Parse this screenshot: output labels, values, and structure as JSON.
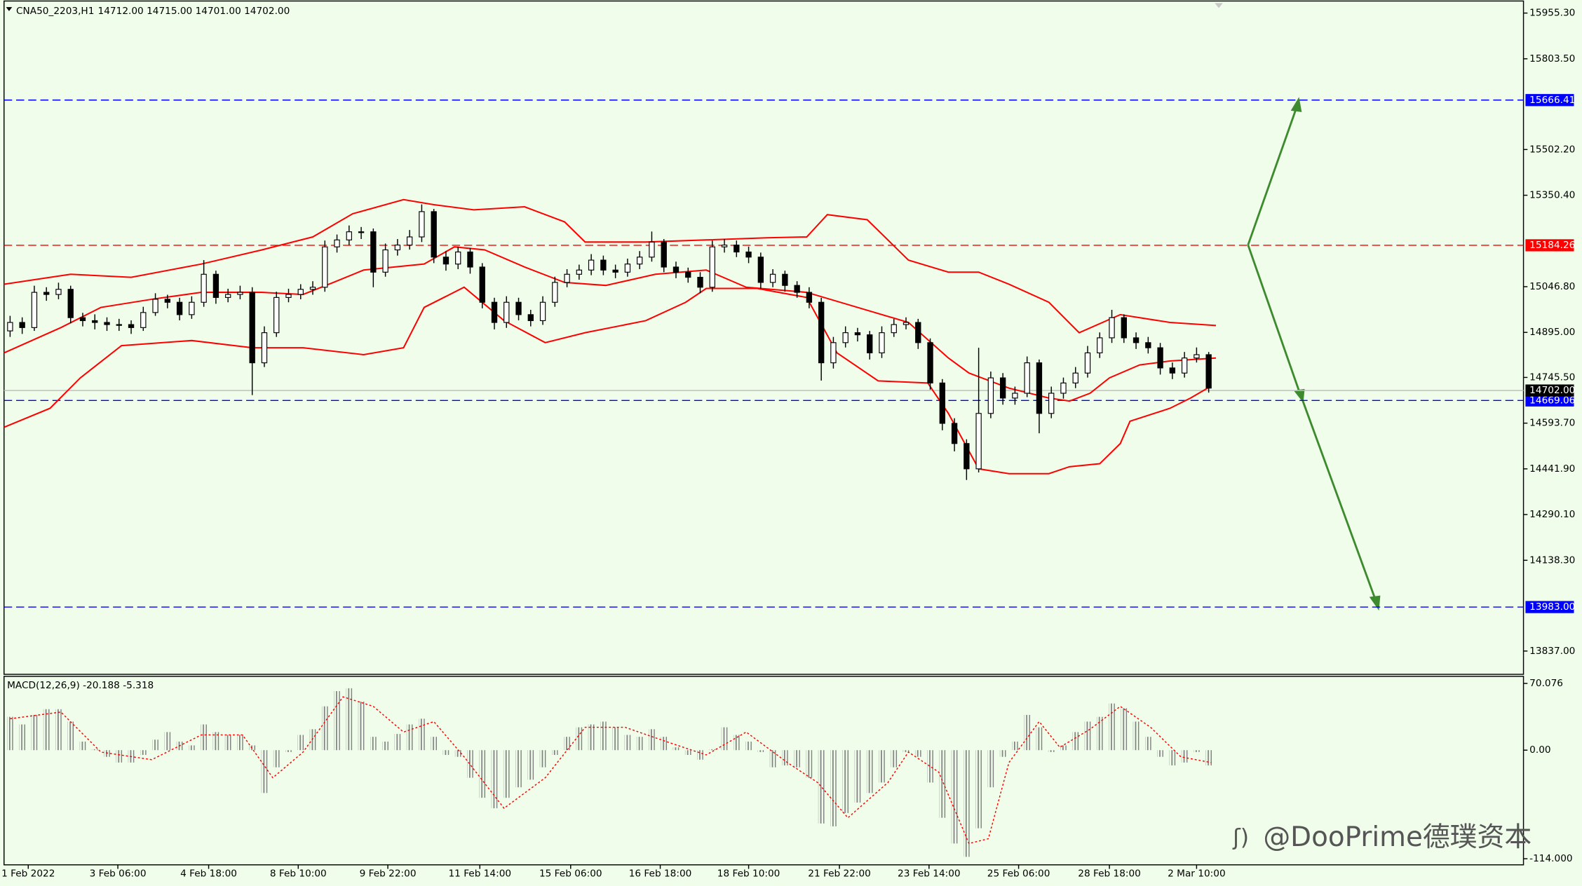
{
  "chart_data": [
    {
      "type": "candlestick",
      "title": "CNA50_2203,H1",
      "quote": "14712.00 14715.00 14701.00 14702.00",
      "ylim": [
        13763,
        15992
      ],
      "xlim": [
        -0.5,
        125
      ],
      "yticks": [
        {
          "value": 15955.3,
          "label": "15955.30"
        },
        {
          "value": 15803.5,
          "label": "15803.50"
        },
        {
          "value": 15502.2,
          "label": "15502.20"
        },
        {
          "value": 15350.4,
          "label": "15350.40"
        },
        {
          "value": 15046.8,
          "label": "15046.80"
        },
        {
          "value": 14895,
          "label": "14895.00"
        },
        {
          "value": 14745.5,
          "label": "14745.50"
        },
        {
          "value": 14593.7,
          "label": "14593.70"
        },
        {
          "value": 14441.9,
          "label": "14441.90"
        },
        {
          "value": 14290.1,
          "label": "14290.10"
        },
        {
          "value": 14138.3,
          "label": "14138.30"
        },
        {
          "value": 13837,
          "label": "13837.00"
        }
      ],
      "xticks": [
        {
          "value": 1.5,
          "label": "1 Feb 2022"
        },
        {
          "value": 8.9,
          "label": "3 Feb 06:00"
        },
        {
          "value": 16.4,
          "label": "4 Feb 18:00"
        },
        {
          "value": 23.8,
          "label": "8 Feb 10:00"
        },
        {
          "value": 31.2,
          "label": "9 Feb 22:00"
        },
        {
          "value": 38.8,
          "label": "11 Feb 14:00"
        },
        {
          "value": 46.3,
          "label": "15 Feb 06:00"
        },
        {
          "value": 53.7,
          "label": "16 Feb 18:00"
        },
        {
          "value": 61,
          "label": "18 Feb 10:00"
        },
        {
          "value": 68.5,
          "label": "21 Feb 22:00"
        },
        {
          "value": 75.9,
          "label": "23 Feb 14:00"
        },
        {
          "value": 83.3,
          "label": "25 Feb 06:00"
        },
        {
          "value": 90.8,
          "label": "28 Feb 18:00"
        },
        {
          "value": 98,
          "label": "2 Mar 10:00"
        }
      ],
      "open": [
        14900,
        14928,
        14911,
        15028,
        15021,
        15038,
        14944,
        14934,
        14928,
        14921,
        14921,
        14911,
        14961,
        15005,
        14995,
        14954,
        14995,
        15088,
        15011,
        15021,
        15028,
        14794,
        14894,
        15011,
        15021,
        15038,
        15045,
        15179,
        15202,
        15229,
        15229,
        15095,
        15169,
        15185,
        15212,
        15296,
        15145,
        15122,
        15162,
        15112,
        14995,
        14928,
        14995,
        14954,
        14934,
        14995,
        15061,
        15088,
        15102,
        15135,
        15102,
        15095,
        15122,
        15145,
        15195,
        15112,
        15095,
        15078,
        15045,
        15179,
        15185,
        15162,
        15145,
        15061,
        15088,
        15051,
        15028,
        14995,
        14794,
        14861,
        14894,
        14887,
        14827,
        14894,
        14921,
        14928,
        14861,
        14727,
        14593,
        14526,
        14442,
        14626,
        14744,
        14677,
        14693,
        14794,
        14626,
        14693,
        14727,
        14760,
        14827,
        14877,
        14944,
        14877,
        14861,
        14844,
        14777,
        14760,
        14810,
        14821
      ],
      "high": [
        14950,
        14945,
        15050,
        15045,
        15060,
        15050,
        14960,
        14955,
        14945,
        14940,
        14935,
        14980,
        15025,
        15020,
        15010,
        15015,
        15135,
        15100,
        15040,
        15050,
        15045,
        14915,
        15030,
        15040,
        15055,
        15065,
        15200,
        15220,
        15250,
        15245,
        15240,
        15190,
        15205,
        15235,
        15320,
        15305,
        15165,
        15180,
        15175,
        15125,
        15010,
        15015,
        15010,
        14970,
        15015,
        15080,
        15105,
        15120,
        15155,
        15150,
        15120,
        15140,
        15165,
        15230,
        15205,
        15130,
        15110,
        15095,
        15200,
        15205,
        15200,
        15180,
        15160,
        15105,
        15100,
        15065,
        15045,
        15010,
        14880,
        14915,
        14910,
        14900,
        14915,
        14940,
        14945,
        14940,
        14875,
        14740,
        14610,
        14540,
        14844,
        14765,
        14760,
        14715,
        14815,
        14805,
        14715,
        14745,
        14780,
        14850,
        14895,
        14970,
        14955,
        14895,
        14880,
        14860,
        14795,
        14830,
        14845,
        14830
      ],
      "low": [
        14880,
        14890,
        14900,
        15000,
        15005,
        14925,
        14915,
        14905,
        14900,
        14900,
        14890,
        14900,
        14950,
        14975,
        14935,
        14940,
        14980,
        14990,
        14995,
        15005,
        14687,
        14780,
        14880,
        14995,
        15005,
        15020,
        15030,
        15160,
        15185,
        15205,
        15045,
        15080,
        15150,
        15170,
        15195,
        15125,
        15100,
        15105,
        15090,
        14975,
        14905,
        14910,
        14935,
        14915,
        14920,
        14980,
        15045,
        15070,
        15085,
        15085,
        15075,
        15080,
        15105,
        15130,
        15095,
        15075,
        15060,
        15025,
        15030,
        15160,
        15145,
        15125,
        15040,
        15045,
        15030,
        15010,
        14975,
        14735,
        14775,
        14845,
        14865,
        14805,
        14810,
        14880,
        14905,
        14840,
        14705,
        14570,
        14500,
        14405,
        14430,
        14610,
        14655,
        14655,
        14680,
        14560,
        14610,
        14675,
        14710,
        14745,
        14810,
        14860,
        14860,
        14840,
        14825,
        14755,
        14740,
        14745,
        14795,
        14695
      ],
      "close": [
        14928,
        14911,
        15028,
        15021,
        15038,
        14944,
        14934,
        14928,
        14921,
        14921,
        14911,
        14961,
        15005,
        14995,
        14954,
        14995,
        15088,
        15011,
        15021,
        15028,
        14794,
        14894,
        15011,
        15021,
        15038,
        15045,
        15179,
        15202,
        15229,
        15229,
        15095,
        15169,
        15185,
        15212,
        15296,
        15145,
        15122,
        15162,
        15112,
        14995,
        14928,
        14995,
        14954,
        14934,
        14995,
        15061,
        15088,
        15102,
        15135,
        15102,
        15095,
        15122,
        15145,
        15195,
        15112,
        15095,
        15078,
        15045,
        15179,
        15185,
        15162,
        15145,
        15061,
        15088,
        15051,
        15028,
        14995,
        14794,
        14861,
        14894,
        14887,
        14827,
        14894,
        14921,
        14928,
        14861,
        14727,
        14593,
        14526,
        14442,
        14626,
        14744,
        14677,
        14693,
        14794,
        14626,
        14693,
        14727,
        14760,
        14827,
        14877,
        14944,
        14877,
        14861,
        14844,
        14777,
        14760,
        14810,
        14821,
        14710
      ],
      "bands": [
        {
          "color": "#ff0000",
          "x": [
            -0.5,
            5,
            10,
            15.8,
            20.8,
            25,
            28.3,
            32.5,
            35,
            38.3,
            42.5,
            45.8,
            47.5,
            52.5,
            57.5,
            62.5,
            65.8,
            67.5,
            70.8,
            74.2,
            77.5,
            80,
            82.5,
            85.8,
            88.3,
            91.7,
            95.8,
            99.6
          ],
          "values": [
            15055,
            15088,
            15078,
            15122,
            15169,
            15212,
            15289,
            15336,
            15319,
            15302,
            15312,
            15262,
            15195,
            15195,
            15202,
            15209,
            15212,
            15286,
            15269,
            15135,
            15095,
            15095,
            15055,
            14995,
            14894,
            14954,
            14928,
            14918
          ]
        },
        {
          "color": "#ff0000",
          "x": [
            -0.5,
            4.2,
            7.5,
            11.7,
            15.8,
            20.8,
            24.2,
            26.7,
            29.2,
            34.2,
            36.7,
            39.2,
            42.5,
            45.8,
            49.2,
            53.3,
            57.5,
            60.8,
            65.8,
            70,
            74.2,
            77.5,
            79.2,
            82.5,
            85.8,
            87.5,
            89.2,
            90.8,
            93.3,
            95.8,
            99.6
          ],
          "values": [
            14827,
            14911,
            14978,
            15005,
            15028,
            15028,
            15021,
            15061,
            15102,
            15122,
            15179,
            15169,
            15112,
            15061,
            15051,
            15088,
            15102,
            15045,
            15028,
            14978,
            14928,
            14810,
            14760,
            14710,
            14677,
            14667,
            14693,
            14744,
            14787,
            14800,
            14810
          ]
        },
        {
          "color": "#ff0000",
          "x": [
            -0.5,
            3.3,
            5.8,
            9.2,
            15,
            20,
            24.2,
            29.2,
            32.5,
            34.2,
            37.5,
            40.8,
            44.2,
            47.5,
            52.5,
            55.8,
            57.5,
            61.7,
            65.8,
            68.3,
            71.7,
            75.8,
            77.5,
            80,
            82.5,
            85.8,
            87.5,
            90,
            91.7,
            92.5,
            95.8,
            97.5,
            99.2
          ],
          "values": [
            14580,
            14643,
            14744,
            14851,
            14868,
            14844,
            14844,
            14821,
            14844,
            14978,
            15045,
            14934,
            14861,
            14894,
            14934,
            14995,
            15041,
            15041,
            15011,
            14827,
            14734,
            14727,
            14626,
            14442,
            14426,
            14426,
            14449,
            14459,
            14526,
            14600,
            14643,
            14677,
            14717
          ]
        }
      ],
      "levels": {
        "values": [
          15666.41,
          15184.26,
          14669.06,
          13983,
          14702
        ],
        "value_labels": [
          "15666.41",
          "15184.26",
          "14669.06",
          "13983.00",
          "14702.00"
        ],
        "colors": [
          "#0000ff",
          "#ff0000",
          "#0000ff",
          "#0000ff",
          "#c0c0c0"
        ],
        "label_colors": [
          "#0000ff",
          "#ff0000",
          "#0000ff",
          "#0000ff",
          "#000000"
        ],
        "styles": [
          "dash",
          "dash",
          "dash",
          "dash",
          "solid"
        ]
      }
    },
    {
      "type": "macd",
      "title": "MACD(12,26,9) -20.188 -5.318",
      "color": "#808080",
      "ylim": [
        -120.4,
        77.5
      ],
      "yticks": [
        70.076,
        {
          "value": 0,
          "label": "0.00"
        },
        {
          "value": -114,
          "label": "-114.000"
        }
      ],
      "xlim": [
        -0.5,
        125
      ],
      "values": [
        35,
        27,
        37,
        43,
        43,
        30,
        9,
        1,
        -7,
        -13,
        -13,
        -5,
        11,
        19,
        9,
        5,
        27,
        19,
        16,
        16,
        5,
        -45,
        -18,
        -2,
        16,
        22,
        46,
        62,
        65,
        51,
        14,
        9,
        17,
        27,
        33,
        14,
        -5,
        -7,
        -29,
        -50,
        -61,
        -50,
        -39,
        -31,
        -18,
        -5,
        14,
        24,
        27,
        30,
        24,
        16,
        14,
        22,
        14,
        3,
        -5,
        -10,
        1,
        24,
        16,
        9,
        -2,
        -18,
        -16,
        -18,
        -29,
        -77,
        -80,
        -66,
        -55,
        -45,
        -34,
        -18,
        -2,
        -7,
        -34,
        -71,
        -98,
        -112,
        -82,
        -39,
        -7,
        9,
        37,
        24,
        -2,
        5,
        19,
        30,
        35,
        49,
        44,
        30,
        14,
        -7,
        -16,
        -13,
        -2,
        -16
      ],
      "signal": {
        "color": "#ff0000",
        "x": [
          0,
          4.2,
          7.5,
          11.7,
          15.8,
          19.2,
          21.7,
          24.2,
          27.5,
          30,
          32.5,
          35,
          37.5,
          40.8,
          44.2,
          47.5,
          50.8,
          54.2,
          57.5,
          60.8,
          64.2,
          66.7,
          69.2,
          72.5,
          74.2,
          76.7,
          79.2,
          80.8,
          82.5,
          85,
          86.7,
          89.2,
          91.7,
          94.2,
          96.7,
          99.2
        ],
        "values": [
          33,
          40,
          -2,
          -10,
          16,
          16,
          -29,
          -2,
          56,
          46,
          19,
          30,
          -7,
          -61,
          -29,
          24,
          24,
          9,
          -5,
          19,
          -13,
          -34,
          -71,
          -34,
          -2,
          -23,
          -98,
          -93,
          -13,
          30,
          3,
          22,
          46,
          24,
          -7,
          -13
        ]
      }
    }
  ],
  "watermark": "@DooPrime德璞资本"
}
